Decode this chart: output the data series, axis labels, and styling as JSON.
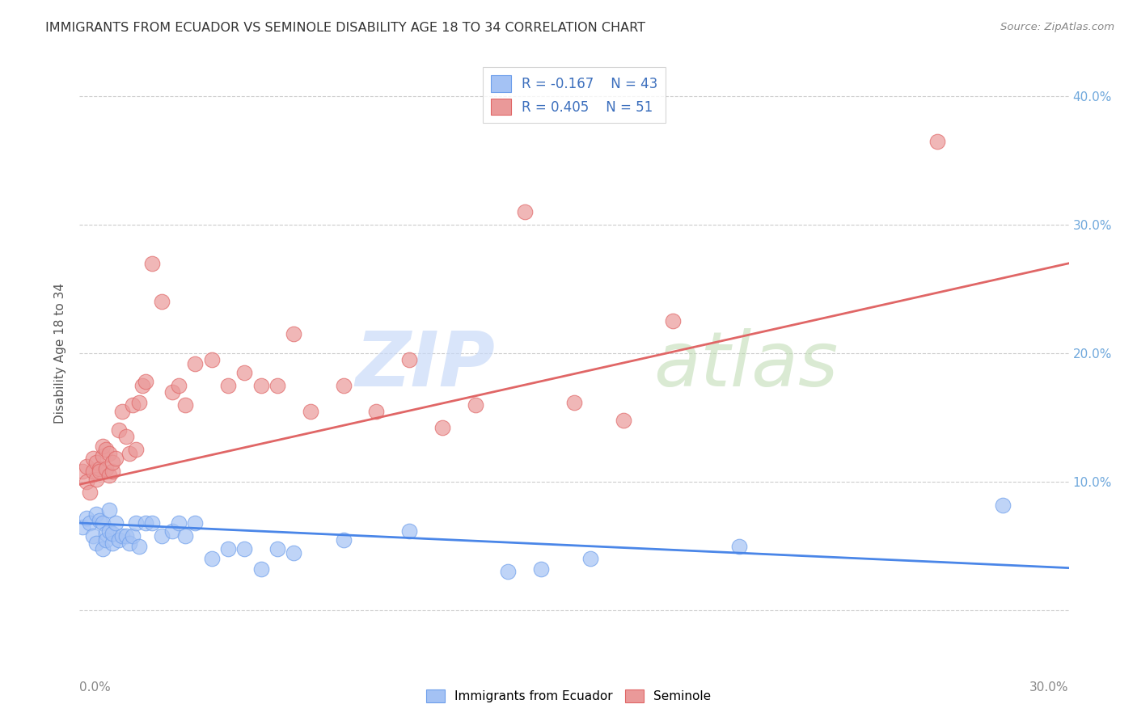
{
  "title": "IMMIGRANTS FROM ECUADOR VS SEMINOLE DISABILITY AGE 18 TO 34 CORRELATION CHART",
  "source": "Source: ZipAtlas.com",
  "ylabel": "Disability Age 18 to 34",
  "x_min": 0.0,
  "x_max": 0.3,
  "y_min": -0.03,
  "y_max": 0.43,
  "y_ticks": [
    0.0,
    0.1,
    0.2,
    0.3,
    0.4
  ],
  "y_tick_labels_right": [
    "",
    "10.0%",
    "20.0%",
    "30.0%",
    "40.0%"
  ],
  "legend_r1": "R = -0.167",
  "legend_n1": "N = 43",
  "legend_r2": "R = 0.405",
  "legend_n2": "N = 51",
  "legend_label1": "Immigrants from Ecuador",
  "legend_label2": "Seminole",
  "blue_color": "#a4c2f4",
  "pink_color": "#ea9999",
  "blue_edge_color": "#6d9eeb",
  "pink_edge_color": "#e06666",
  "blue_line_color": "#4a86e8",
  "pink_line_color": "#e06666",
  "grid_color": "#cccccc",
  "blue_scatter_x": [
    0.001,
    0.002,
    0.003,
    0.004,
    0.005,
    0.005,
    0.006,
    0.007,
    0.007,
    0.008,
    0.008,
    0.009,
    0.009,
    0.01,
    0.01,
    0.011,
    0.012,
    0.013,
    0.014,
    0.015,
    0.016,
    0.017,
    0.018,
    0.02,
    0.022,
    0.025,
    0.028,
    0.03,
    0.032,
    0.035,
    0.04,
    0.045,
    0.05,
    0.055,
    0.06,
    0.065,
    0.08,
    0.1,
    0.13,
    0.14,
    0.155,
    0.2,
    0.28
  ],
  "blue_scatter_y": [
    0.065,
    0.072,
    0.068,
    0.058,
    0.075,
    0.052,
    0.07,
    0.048,
    0.068,
    0.06,
    0.055,
    0.078,
    0.062,
    0.052,
    0.06,
    0.068,
    0.055,
    0.058,
    0.058,
    0.052,
    0.058,
    0.068,
    0.05,
    0.068,
    0.068,
    0.058,
    0.062,
    0.068,
    0.058,
    0.068,
    0.04,
    0.048,
    0.048,
    0.032,
    0.048,
    0.045,
    0.055,
    0.062,
    0.03,
    0.032,
    0.04,
    0.05,
    0.082
  ],
  "pink_scatter_x": [
    0.001,
    0.002,
    0.002,
    0.003,
    0.004,
    0.004,
    0.005,
    0.005,
    0.006,
    0.006,
    0.007,
    0.007,
    0.008,
    0.008,
    0.009,
    0.009,
    0.01,
    0.01,
    0.011,
    0.012,
    0.013,
    0.014,
    0.015,
    0.016,
    0.017,
    0.018,
    0.019,
    0.02,
    0.022,
    0.025,
    0.028,
    0.03,
    0.032,
    0.035,
    0.04,
    0.045,
    0.05,
    0.055,
    0.06,
    0.065,
    0.07,
    0.08,
    0.09,
    0.1,
    0.11,
    0.12,
    0.135,
    0.15,
    0.165,
    0.18,
    0.26
  ],
  "pink_scatter_y": [
    0.108,
    0.1,
    0.112,
    0.092,
    0.108,
    0.118,
    0.102,
    0.115,
    0.11,
    0.108,
    0.12,
    0.128,
    0.11,
    0.125,
    0.105,
    0.122,
    0.108,
    0.115,
    0.118,
    0.14,
    0.155,
    0.135,
    0.122,
    0.16,
    0.125,
    0.162,
    0.175,
    0.178,
    0.27,
    0.24,
    0.17,
    0.175,
    0.16,
    0.192,
    0.195,
    0.175,
    0.185,
    0.175,
    0.175,
    0.215,
    0.155,
    0.175,
    0.155,
    0.195,
    0.142,
    0.16,
    0.31,
    0.162,
    0.148,
    0.225,
    0.365
  ],
  "blue_line_x0": 0.0,
  "blue_line_y0": 0.068,
  "blue_line_x1": 0.3,
  "blue_line_y1": 0.033,
  "pink_line_x0": 0.0,
  "pink_line_y0": 0.098,
  "pink_line_x1": 0.3,
  "pink_line_y1": 0.27
}
